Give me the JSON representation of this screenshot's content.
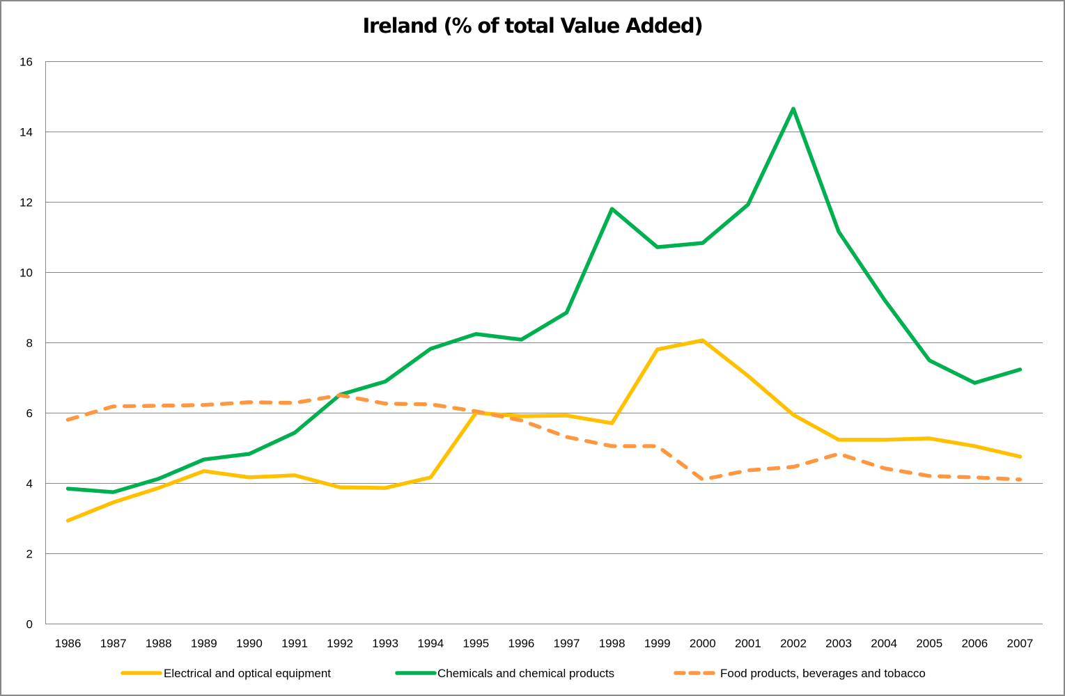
{
  "chart_data": {
    "type": "line",
    "title": "Ireland (% of total Value Added)",
    "xlabel": "",
    "ylabel": "",
    "ylim": [
      0,
      16
    ],
    "yticks": [
      0,
      2,
      4,
      6,
      8,
      10,
      12,
      14,
      16
    ],
    "grid": "horizontal",
    "legend_position": "bottom",
    "categories": [
      "1986",
      "1987",
      "1988",
      "1989",
      "1990",
      "1991",
      "1992",
      "1993",
      "1994",
      "1995",
      "1996",
      "1997",
      "1998",
      "1999",
      "2000",
      "2001",
      "2002",
      "2003",
      "2004",
      "2005",
      "2006",
      "2007"
    ],
    "series": [
      {
        "name": "Electrical and optical equipment",
        "color": "#FFC000",
        "dash": "solid",
        "values": [
          2.93,
          3.45,
          3.86,
          4.34,
          4.16,
          4.22,
          3.88,
          3.86,
          4.16,
          6.0,
          5.9,
          5.92,
          5.7,
          7.8,
          8.06,
          7.05,
          5.94,
          5.23,
          5.23,
          5.27,
          5.05,
          4.75
        ]
      },
      {
        "name": "Chemicals and chemical products",
        "color": "#00B050",
        "dash": "solid",
        "values": [
          3.84,
          3.74,
          4.12,
          4.67,
          4.83,
          5.43,
          6.51,
          6.89,
          7.82,
          8.24,
          8.08,
          8.85,
          11.8,
          10.71,
          10.83,
          11.92,
          14.65,
          11.15,
          9.23,
          7.49,
          6.85,
          7.23
        ]
      },
      {
        "name": "Food products, beverages and tobacco",
        "color": "#FF9640",
        "dash": "dashed",
        "values": [
          5.8,
          6.18,
          6.2,
          6.22,
          6.3,
          6.28,
          6.5,
          6.26,
          6.24,
          6.04,
          5.78,
          5.31,
          5.05,
          5.05,
          4.1,
          4.36,
          4.46,
          4.83,
          4.42,
          4.2,
          4.16,
          4.1
        ]
      }
    ]
  },
  "colors": {
    "gridline": "#878787",
    "axis": "#878787",
    "frame": "#888888"
  }
}
